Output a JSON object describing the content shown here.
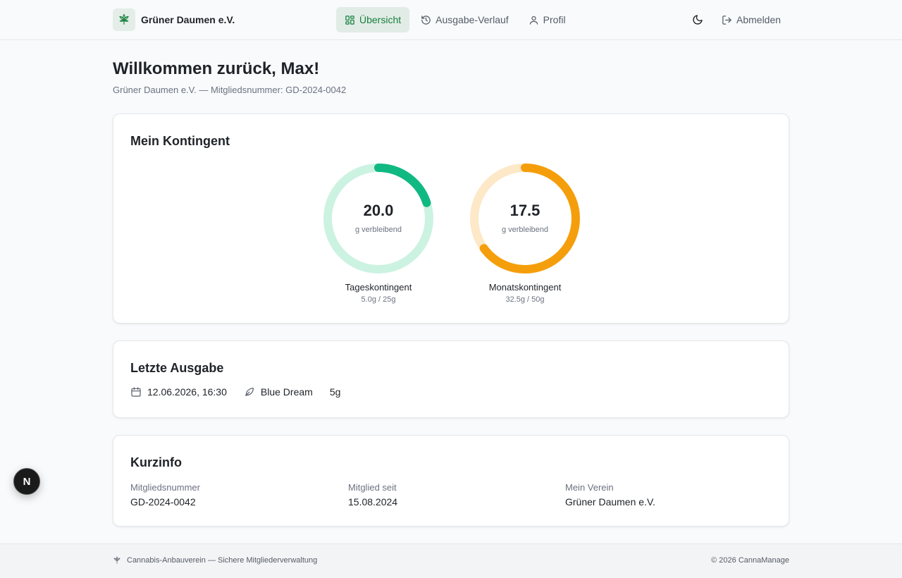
{
  "header": {
    "brand_name": "Grüner Daumen e.V.",
    "nav": [
      {
        "label": "Übersicht",
        "icon": "grid-icon",
        "active": true
      },
      {
        "label": "Ausgabe-Verlauf",
        "icon": "history-icon",
        "active": false
      },
      {
        "label": "Profil",
        "icon": "user-icon",
        "active": false
      }
    ],
    "theme_icon": "moon-icon",
    "logout_label": "Abmelden"
  },
  "welcome": {
    "title": "Willkommen zurück, Max!",
    "subtitle": "Grüner Daumen e.V. — Mitgliedsnummer: GD-2024-0042"
  },
  "kontingent": {
    "title": "Mein Kontingent",
    "gauges": [
      {
        "value": "20.0",
        "unit": "g verbleibend",
        "label": "Tageskontingent",
        "sub": "5.0g / 25g",
        "used_fraction": 0.2,
        "color": "#10b981",
        "track_color": "#ccf2e2"
      },
      {
        "value": "17.5",
        "unit": "g verbleibend",
        "label": "Monatskontingent",
        "sub": "32.5g / 50g",
        "used_fraction": 0.65,
        "color": "#f59e0b",
        "track_color": "#fde8c8"
      }
    ]
  },
  "letzte_ausgabe": {
    "title": "Letzte Ausgabe",
    "datetime": "12.06.2026, 16:30",
    "strain": "Blue Dream",
    "amount": "5g"
  },
  "kurzinfo": {
    "title": "Kurzinfo",
    "items": [
      {
        "label": "Mitgliedsnummer",
        "value": "GD-2024-0042"
      },
      {
        "label": "Mitglied seit",
        "value": "15.08.2024"
      },
      {
        "label": "Mein Verein",
        "value": "Grüner Daumen e.V."
      }
    ]
  },
  "footer": {
    "left": "Cannabis-Anbauverein — Sichere Mitgliederverwaltung",
    "right": "© 2026 CannaManage"
  },
  "dev_badge": {
    "label": "N"
  }
}
